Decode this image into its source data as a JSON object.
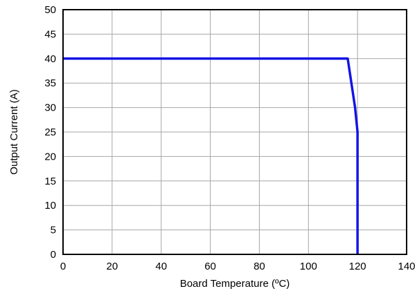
{
  "chart_data": {
    "type": "line",
    "title": "",
    "xlabel": "Board Temperature (ºC)",
    "ylabel": "Output Current (A)",
    "xlim": [
      0,
      140
    ],
    "ylim": [
      0,
      50
    ],
    "x_ticks": [
      0,
      20,
      40,
      60,
      80,
      100,
      120,
      140
    ],
    "y_ticks": [
      0,
      5,
      10,
      15,
      20,
      25,
      30,
      35,
      40,
      45,
      50
    ],
    "grid": true,
    "legend": "none",
    "series": [
      {
        "color": "#1414e6",
        "points": [
          [
            0,
            40
          ],
          [
            116,
            40
          ],
          [
            117.5,
            35
          ],
          [
            119,
            30
          ],
          [
            120,
            25
          ],
          [
            120,
            0
          ]
        ]
      }
    ]
  }
}
